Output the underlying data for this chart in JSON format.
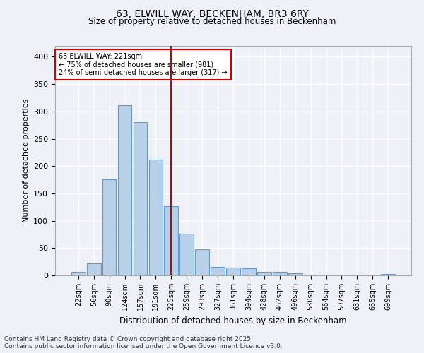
{
  "title1": "63, ELWILL WAY, BECKENHAM, BR3 6RY",
  "title2": "Size of property relative to detached houses in Beckenham",
  "xlabel": "Distribution of detached houses by size in Beckenham",
  "ylabel": "Number of detached properties",
  "categories": [
    "22sqm",
    "56sqm",
    "90sqm",
    "124sqm",
    "157sqm",
    "191sqm",
    "225sqm",
    "259sqm",
    "293sqm",
    "327sqm",
    "361sqm",
    "394sqm",
    "428sqm",
    "462sqm",
    "496sqm",
    "530sqm",
    "564sqm",
    "597sqm",
    "631sqm",
    "665sqm",
    "699sqm"
  ],
  "values": [
    6,
    22,
    176,
    312,
    281,
    212,
    127,
    76,
    48,
    15,
    14,
    13,
    7,
    7,
    4,
    1,
    0,
    0,
    1,
    0,
    3
  ],
  "bar_color": "#b8d0e8",
  "bar_edge_color": "#6699cc",
  "property_line_x": 6.0,
  "annotation_line1": "63 ELWILL WAY: 221sqm",
  "annotation_line2": "← 75% of detached houses are smaller (981)",
  "annotation_line3": "24% of semi-detached houses are larger (317) →",
  "annotation_box_color": "#ffffff",
  "annotation_box_edge": "#cc0000",
  "vline_color": "#cc0000",
  "ylim": [
    0,
    420
  ],
  "yticks": [
    0,
    50,
    100,
    150,
    200,
    250,
    300,
    350,
    400
  ],
  "background_color": "#eef2f8",
  "grid_color": "#ffffff",
  "footer_line1": "Contains HM Land Registry data © Crown copyright and database right 2025.",
  "footer_line2": "Contains public sector information licensed under the Open Government Licence v3.0."
}
